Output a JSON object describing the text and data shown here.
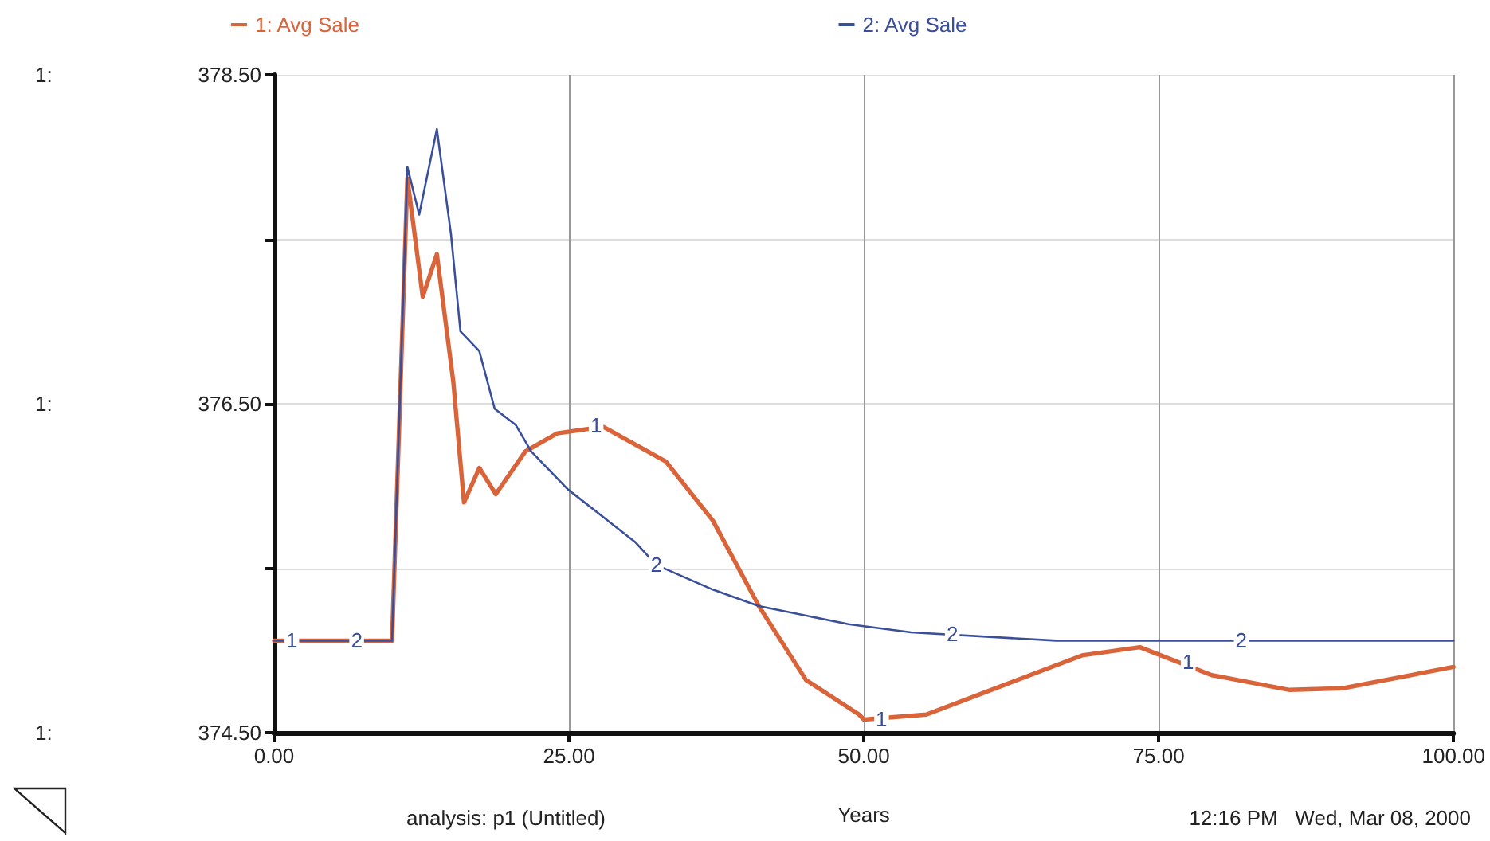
{
  "chart_data": {
    "type": "line",
    "xlabel": "Years",
    "series": [
      {
        "name": "1: Avg Sale",
        "color": "#d9643a",
        "x": [
          0,
          10,
          11.3,
          12.6,
          13.8,
          15.2,
          16.1,
          17.4,
          18.8,
          21.3,
          24,
          27.9,
          33.2,
          37.2,
          41.1,
          45.1,
          49.6,
          50,
          55.3,
          61.9,
          68.5,
          73.4,
          79.5,
          86.1,
          90.6,
          99.3,
          100
        ],
        "values": [
          375.06,
          375.06,
          377.87,
          377.15,
          377.41,
          376.63,
          375.9,
          376.11,
          375.95,
          376.21,
          376.32,
          376.36,
          376.15,
          375.79,
          375.27,
          374.82,
          374.61,
          374.58,
          374.61,
          374.79,
          374.97,
          375.02,
          374.85,
          374.76,
          374.77,
          374.89,
          374.9
        ]
      },
      {
        "name": "2: Avg Sale",
        "color": "#3a4f9a",
        "x": [
          0,
          10,
          11.3,
          12.3,
          13.8,
          15,
          15.8,
          17.4,
          18.7,
          20.5,
          21.8,
          24.9,
          30.6,
          32.4,
          37.2,
          41.1,
          48.7,
          54,
          66.3,
          99.3,
          100
        ],
        "values": [
          375.06,
          375.06,
          377.94,
          377.65,
          378.17,
          377.53,
          376.94,
          376.82,
          376.47,
          376.37,
          376.21,
          375.98,
          375.66,
          375.52,
          375.37,
          375.27,
          375.16,
          375.11,
          375.06,
          375.06,
          375.06
        ]
      }
    ],
    "xlim": [
      0,
      100
    ],
    "xticks": [
      {
        "value": 0,
        "label": "0.00"
      },
      {
        "value": 25,
        "label": "25.00"
      },
      {
        "value": 50,
        "label": "50.00"
      },
      {
        "value": 75,
        "label": "75.00"
      },
      {
        "value": 100,
        "label": "100.00"
      }
    ],
    "ylim": [
      374.5,
      378.5
    ],
    "yticks": [
      {
        "value": 374.5,
        "label": "374.50"
      },
      {
        "value": 375.5,
        "label": null
      },
      {
        "value": 376.5,
        "label": "376.50"
      },
      {
        "value": 377.5,
        "label": null
      },
      {
        "value": 378.5,
        "label": "378.50"
      }
    ],
    "grid": true,
    "legend": "top",
    "marker": "none",
    "line_style": "solid",
    "annotations": [
      "1:",
      "1:",
      "1:",
      {
        "text": "1",
        "x": 1.5,
        "y": 375.06
      },
      {
        "text": "2",
        "x": 7,
        "y": 375.06
      },
      {
        "text": "1",
        "x": 27.3,
        "y": 376.37
      },
      {
        "text": "2",
        "x": 32.4,
        "y": 375.52
      },
      {
        "text": "1",
        "x": 51.5,
        "y": 374.58
      },
      {
        "text": "2",
        "x": 57.5,
        "y": 375.1
      },
      {
        "text": "1",
        "x": 77.5,
        "y": 374.93
      },
      {
        "text": "2",
        "x": 82,
        "y": 375.06
      },
      "analysis: p1 (Untitled)",
      "12:16 PM   Wed, Mar 08, 2000"
    ]
  }
}
